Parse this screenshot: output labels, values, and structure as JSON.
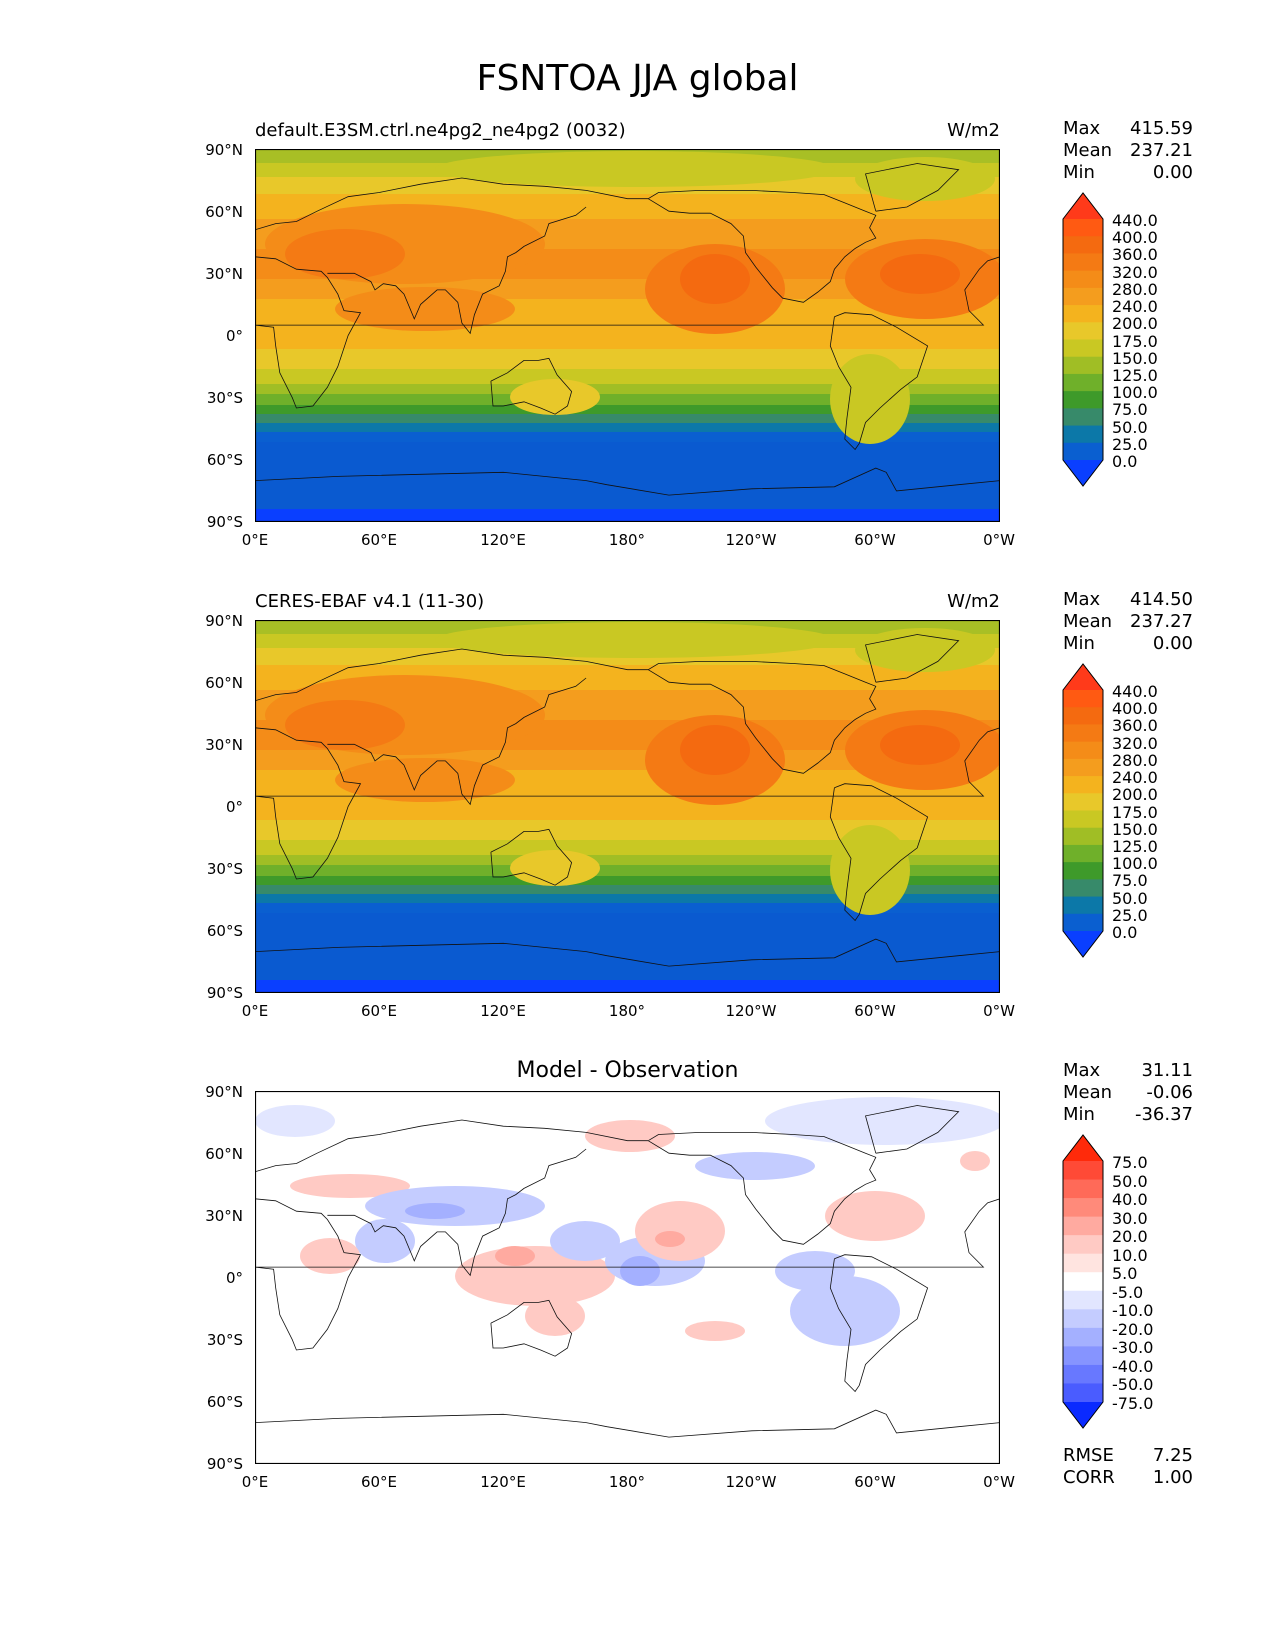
{
  "figure": {
    "title": "FSNTOA JJA global"
  },
  "panels": [
    {
      "title_left": "default.E3SM.ctrl.ne4pg2_ne4pg2 (0032)",
      "title_right": "W/m2",
      "title_center": "",
      "stats": {
        "max_label": "Max",
        "max": "415.59",
        "mean_label": "Mean",
        "mean": "237.21",
        "min_label": "Min",
        "min": "0.00"
      },
      "colorbar": {
        "levels": [
          "440.0",
          "400.0",
          "360.0",
          "320.0",
          "280.0",
          "240.0",
          "200.0",
          "175.0",
          "150.0",
          "125.0",
          "100.0",
          "75.0",
          "50.0",
          "25.0",
          "0.0"
        ],
        "colors": [
          "#ff3a1a",
          "#ff5a12",
          "#f46a10",
          "#f47a14",
          "#f48c18",
          "#f49d1e",
          "#f4b31e",
          "#e8c82a",
          "#c9c823",
          "#a0be25",
          "#6fb02a",
          "#3e9a2a",
          "#378a6a",
          "#0c78a8",
          "#0a5fd0",
          "#0a3fff"
        ]
      },
      "map": {
        "kind": "field"
      }
    },
    {
      "title_left": "CERES-EBAF v4.1 (11-30)",
      "title_right": "W/m2",
      "title_center": "",
      "stats": {
        "max_label": "Max",
        "max": "414.50",
        "mean_label": "Mean",
        "mean": "237.27",
        "min_label": "Min",
        "min": "0.00"
      },
      "colorbar": {
        "levels": [
          "440.0",
          "400.0",
          "360.0",
          "320.0",
          "280.0",
          "240.0",
          "200.0",
          "175.0",
          "150.0",
          "125.0",
          "100.0",
          "75.0",
          "50.0",
          "25.0",
          "0.0"
        ],
        "colors": [
          "#ff3a1a",
          "#ff5a12",
          "#f46a10",
          "#f47a14",
          "#f48c18",
          "#f49d1e",
          "#f4b31e",
          "#e8c82a",
          "#c9c823",
          "#a0be25",
          "#6fb02a",
          "#3e9a2a",
          "#378a6a",
          "#0c78a8",
          "#0a5fd0",
          "#0a3fff"
        ]
      },
      "map": {
        "kind": "field"
      }
    },
    {
      "title_left": "",
      "title_right": "",
      "title_center": "Model - Observation",
      "stats": {
        "max_label": "Max",
        "max": "31.11",
        "mean_label": "Mean",
        "mean": "-0.06",
        "min_label": "Min",
        "min": "-36.37"
      },
      "colorbar": {
        "levels": [
          "75.0",
          "50.0",
          "40.0",
          "30.0",
          "20.0",
          "10.0",
          "5.0",
          "-5.0",
          "-10.0",
          "-20.0",
          "-30.0",
          "-40.0",
          "-50.0",
          "-75.0"
        ],
        "colors": [
          "#ff2a0a",
          "#ff4a36",
          "#ff6a58",
          "#ff8a7a",
          "#ffaaa0",
          "#ffcac4",
          "#ffe4e0",
          "#ffffff",
          "#e2e6ff",
          "#c4ccff",
          "#a4b0ff",
          "#8694ff",
          "#6878ff",
          "#4a5cff",
          "#0a2aff"
        ]
      },
      "map": {
        "kind": "diff"
      },
      "metrics": {
        "rmse_label": "RMSE",
        "rmse": "7.25",
        "corr_label": "CORR",
        "corr": "1.00"
      }
    }
  ],
  "axes": {
    "y_ticks": [
      "90°N",
      "60°N",
      "30°N",
      "0°",
      "30°S",
      "60°S",
      "90°S"
    ],
    "x_ticks": [
      "0°E",
      "60°E",
      "120°E",
      "180°",
      "120°W",
      "60°W",
      "0°W"
    ]
  }
}
